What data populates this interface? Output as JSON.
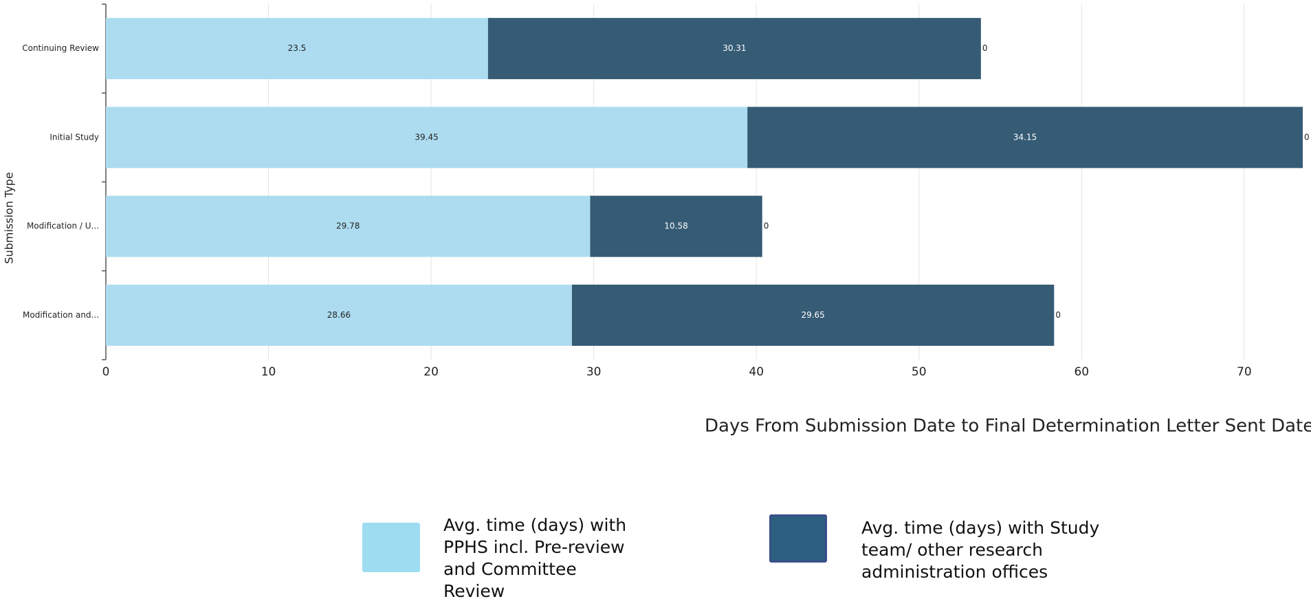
{
  "chart_data": {
    "type": "stacked_barh",
    "xlabel": "Days From Submission Date to Final Determination Letter Sent Date",
    "ylabel": "Submission Type",
    "categories": [
      "Continuing Review",
      "Initial Study",
      "Modification / U...",
      "Modification and..."
    ],
    "series": [
      {
        "name": "Avg. time (days) with PPHS incl. Pre-review and Committee Review",
        "color": "#addcf0",
        "legend_color": "#9edcf2",
        "label_color": "#222222",
        "values": [
          23.5,
          39.45,
          29.78,
          28.66
        ]
      },
      {
        "name": "Avg. time (days) with Study team/ other research administration offices",
        "color": "#365b75",
        "legend_color": "#2c5f80",
        "label_color": "#ffffff",
        "values": [
          30.31,
          34.15,
          10.58,
          29.65
        ]
      },
      {
        "color": "#365b75",
        "label_color": "#222222",
        "values": [
          0,
          0,
          0,
          0
        ]
      }
    ],
    "xlim": [
      0,
      73.6
    ],
    "xticks": [
      0,
      10,
      20,
      30,
      40,
      50,
      60,
      70
    ],
    "grid": true
  }
}
